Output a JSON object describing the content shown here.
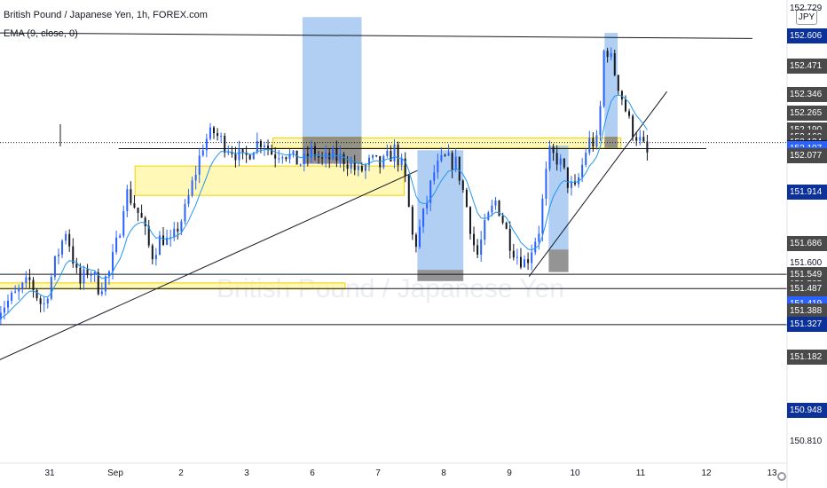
{
  "header": {
    "title": "British Pound / Japanese Yen, 1h, FOREX.com",
    "indicator": "EMA (9, close, 0)",
    "currency": "JPY"
  },
  "watermark": "British Pound / Japanese Yen",
  "colors": {
    "up": "#2962ff",
    "down": "#131722",
    "ema": "#2196f3",
    "zone_fill": "#fff59d",
    "zone_border": "#f5d000",
    "box_blue": "#6fa8e8",
    "box_gray": "#707070"
  },
  "price_axis": {
    "labels": [
      {
        "value": 152.729,
        "text": "152.729",
        "style": "plain"
      },
      {
        "value": 152.606,
        "text": "152.606",
        "style": "navy"
      },
      {
        "value": 152.471,
        "text": "152.471",
        "style": "gray"
      },
      {
        "value": 152.346,
        "text": "152.346",
        "style": "gray"
      },
      {
        "value": 152.265,
        "text": "152.265",
        "style": "gray"
      },
      {
        "value": 152.19,
        "text": "152.190",
        "style": "gray"
      },
      {
        "value": 152.16,
        "text": "152.160",
        "style": "gray"
      },
      {
        "value": 152.134,
        "text": "152.134",
        "style": "gray"
      },
      {
        "value": 152.111,
        "text": "152.111",
        "style": "white"
      },
      {
        "value": 152.107,
        "text": "152.107",
        "style": "blue"
      },
      {
        "value": 152.081,
        "text": "152.081",
        "style": "blue"
      },
      {
        "value": 152.077,
        "text": "152.077",
        "style": "gray"
      },
      {
        "value": 151.914,
        "text": "151.914",
        "style": "navy"
      },
      {
        "value": 151.686,
        "text": "151.686",
        "style": "gray"
      },
      {
        "value": 151.6,
        "text": "151.600",
        "style": "plain"
      },
      {
        "value": 151.55,
        "text": "151.550",
        "style": "navy"
      },
      {
        "value": 151.549,
        "text": "151.549",
        "style": "gray"
      },
      {
        "value": 151.505,
        "text": "151.505",
        "style": "gray"
      },
      {
        "value": 151.487,
        "text": "151.487",
        "style": "gray"
      },
      {
        "value": 151.433,
        "text": "151.433",
        "style": "gray"
      },
      {
        "value": 151.419,
        "text": "151.419",
        "style": "blue"
      },
      {
        "value": 151.388,
        "text": "151.388",
        "style": "gray"
      },
      {
        "value": 151.327,
        "text": "151.327",
        "style": "navy"
      },
      {
        "value": 151.182,
        "text": "151.182",
        "style": "gray"
      },
      {
        "value": 150.948,
        "text": "150.948",
        "style": "navy"
      },
      {
        "value": 150.81,
        "text": "150.810",
        "style": "plain"
      }
    ]
  },
  "time_axis": {
    "labels": [
      {
        "text": "31",
        "day": -1
      },
      {
        "text": "Sep",
        "day": 0
      },
      {
        "text": "2",
        "day": 1
      },
      {
        "text": "3",
        "day": 2
      },
      {
        "text": "6",
        "day": 3
      },
      {
        "text": "7",
        "day": 4
      },
      {
        "text": "8",
        "day": 5
      },
      {
        "text": "9",
        "day": 6
      },
      {
        "text": "10",
        "day": 7
      },
      {
        "text": "11",
        "day": 8
      },
      {
        "text": "12",
        "day": 9
      },
      {
        "text": "13",
        "day": 10
      }
    ]
  },
  "chart_data": {
    "type": "candlestick",
    "title": "British Pound / Japanese Yen, 1h, FOREX.com",
    "ylim": [
      150.78,
      152.75
    ],
    "x_unit": "trading day offset from Sep 1",
    "xlim": [
      -1.8,
      10.2
    ],
    "path": [
      [
        -1.8,
        151.39
      ],
      [
        -1.55,
        151.45
      ],
      [
        -1.3,
        151.52
      ],
      [
        -1.1,
        151.4
      ],
      [
        -0.9,
        151.62
      ],
      [
        -0.75,
        151.75
      ],
      [
        -0.55,
        151.5
      ],
      [
        -0.4,
        151.58
      ],
      [
        -0.25,
        151.49
      ],
      [
        -0.1,
        151.55
      ],
      [
        0.05,
        151.72
      ],
      [
        0.15,
        151.92
      ],
      [
        0.25,
        151.88
      ],
      [
        0.4,
        151.79
      ],
      [
        0.55,
        151.63
      ],
      [
        0.7,
        151.72
      ],
      [
        0.85,
        151.68
      ],
      [
        0.95,
        151.76
      ],
      [
        1.05,
        151.82
      ],
      [
        1.2,
        151.98
      ],
      [
        1.35,
        152.14
      ],
      [
        1.5,
        152.18
      ],
      [
        1.65,
        152.13
      ],
      [
        1.8,
        152.1
      ],
      [
        1.95,
        152.05
      ],
      [
        2.1,
        152.12
      ],
      [
        2.25,
        152.15
      ],
      [
        2.4,
        152.08
      ],
      [
        2.55,
        152.1
      ],
      [
        2.7,
        152.06
      ],
      [
        2.85,
        152.04
      ],
      [
        3.0,
        152.1
      ],
      [
        3.15,
        152.05
      ],
      [
        3.3,
        152.07
      ],
      [
        3.5,
        152.06
      ],
      [
        3.7,
        152.0
      ],
      [
        3.9,
        152.05
      ],
      [
        4.05,
        152.03
      ],
      [
        4.25,
        152.1
      ],
      [
        4.4,
        152.0
      ],
      [
        4.55,
        151.66
      ],
      [
        4.7,
        151.82
      ],
      [
        4.85,
        152.0
      ],
      [
        5.0,
        152.06
      ],
      [
        5.2,
        152.04
      ],
      [
        5.35,
        151.85
      ],
      [
        5.5,
        151.62
      ],
      [
        5.65,
        151.78
      ],
      [
        5.8,
        151.88
      ],
      [
        6.0,
        151.7
      ],
      [
        6.1,
        151.64
      ],
      [
        6.25,
        151.6
      ],
      [
        6.45,
        151.75
      ],
      [
        6.6,
        152.08
      ],
      [
        6.75,
        152.06
      ],
      [
        6.9,
        151.95
      ],
      [
        7.0,
        151.92
      ],
      [
        7.1,
        152.02
      ],
      [
        7.2,
        152.14
      ],
      [
        7.35,
        152.13
      ],
      [
        7.45,
        152.58
      ],
      [
        7.55,
        152.5
      ],
      [
        7.65,
        152.4
      ],
      [
        7.75,
        152.3
      ],
      [
        7.85,
        152.2
      ],
      [
        7.95,
        152.16
      ],
      [
        8.1,
        152.08
      ]
    ],
    "ema_period": 9,
    "zones": [
      {
        "x0": 2.4,
        "x1": 7.7,
        "y0": 152.11,
        "y1": 152.154
      },
      {
        "x0": 0.3,
        "x1": 4.4,
        "y0": 151.9,
        "y1": 152.03
      },
      {
        "x0": -2.0,
        "x1": 3.5,
        "y0": 151.485,
        "y1": 151.512
      }
    ],
    "boxes": [
      {
        "x0": 2.85,
        "x1": 3.75,
        "y0": 152.16,
        "y1": 152.69,
        "color": "blue"
      },
      {
        "x0": 2.85,
        "x1": 3.75,
        "y0": 152.04,
        "y1": 152.16,
        "color": "gray"
      },
      {
        "x0": 4.6,
        "x1": 5.3,
        "y0": 151.57,
        "y1": 152.1,
        "color": "blue"
      },
      {
        "x0": 4.6,
        "x1": 5.3,
        "y0": 151.52,
        "y1": 151.57,
        "color": "gray"
      },
      {
        "x0": 6.6,
        "x1": 6.9,
        "y0": 151.66,
        "y1": 152.12,
        "color": "blue"
      },
      {
        "x0": 6.6,
        "x1": 6.9,
        "y0": 151.56,
        "y1": 151.66,
        "color": "gray"
      },
      {
        "x0": 7.45,
        "x1": 7.65,
        "y0": 152.16,
        "y1": 152.62,
        "color": "blue"
      },
      {
        "x0": 7.45,
        "x1": 7.65,
        "y0": 152.11,
        "y1": 152.16,
        "color": "gray"
      }
    ],
    "hlines": [
      {
        "y": 152.107,
        "x0": 0.05,
        "x1": 9.0
      },
      {
        "y": 151.55,
        "x0": -2.0,
        "x1": 11.0
      },
      {
        "y": 151.487,
        "x0": -2.0,
        "x1": 11.0
      },
      {
        "y": 151.327,
        "x0": -2.0,
        "x1": 11.0
      }
    ],
    "dotted_line": {
      "y": 152.134
    },
    "trendlines": [
      {
        "p0": [
          -2.0,
          151.14
        ],
        "p1": [
          4.6,
          152.01
        ]
      },
      {
        "p0": [
          -1.8,
          152.62
        ],
        "p1": [
          9.7,
          152.595
        ]
      },
      {
        "p0": [
          6.3,
          151.54
        ],
        "p1": [
          8.4,
          152.36
        ]
      }
    ]
  }
}
